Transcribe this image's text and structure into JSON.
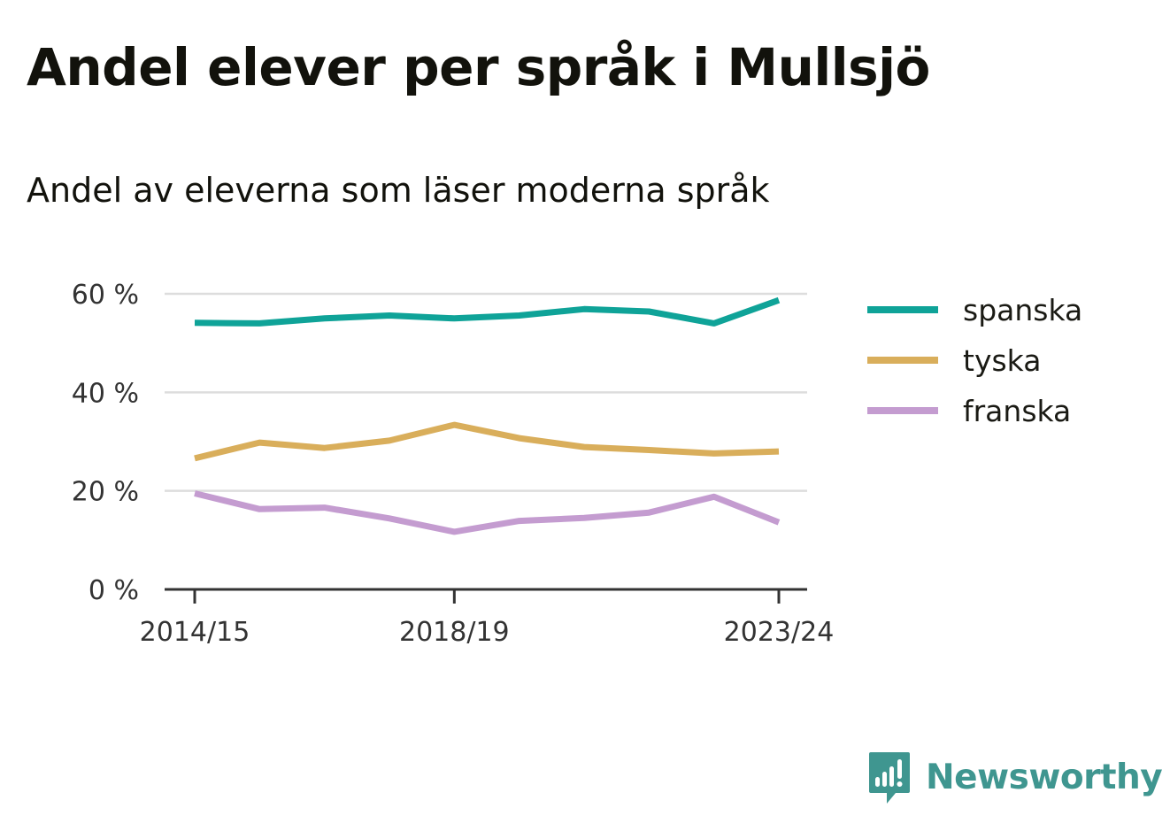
{
  "title": "Andel elever per språk i Mullsjö",
  "subtitle": "Andel av eleverna som läser moderna språk",
  "brand": {
    "name": "Newsworthy",
    "icon": "newsworthy-logo-icon",
    "color": "#3f9690"
  },
  "chart_data": {
    "type": "line",
    "title": "Andel elever per språk i Mullsjö",
    "subtitle": "Andel av eleverna som läser moderna språk",
    "xlabel": "",
    "ylabel": "",
    "x": [
      "2014/15",
      "2015/16",
      "2016/17",
      "2017/18",
      "2018/19",
      "2019/20",
      "2020/21",
      "2021/22",
      "2022/23",
      "2023/24"
    ],
    "x_tick_labels": [
      "2014/15",
      "2018/19",
      "2023/24"
    ],
    "y_ticks": [
      0,
      20,
      40,
      60
    ],
    "y_tick_labels": [
      "0 %",
      "20 %",
      "40 %",
      "60 %"
    ],
    "ylim": [
      0,
      60
    ],
    "grid": true,
    "legend_position": "right",
    "series": [
      {
        "name": "spanska",
        "color": "#0fa398",
        "values": [
          54.1,
          54.0,
          55.0,
          55.6,
          55.0,
          55.6,
          56.9,
          56.4,
          54.0,
          58.7
        ]
      },
      {
        "name": "tyska",
        "color": "#d9ae5b",
        "values": [
          26.6,
          29.8,
          28.7,
          30.2,
          33.4,
          30.7,
          28.9,
          28.3,
          27.6,
          28.0
        ]
      },
      {
        "name": "franska",
        "color": "#c49cd0",
        "values": [
          19.5,
          16.3,
          16.6,
          14.4,
          11.7,
          13.9,
          14.5,
          15.6,
          18.8,
          13.6
        ]
      }
    ]
  }
}
